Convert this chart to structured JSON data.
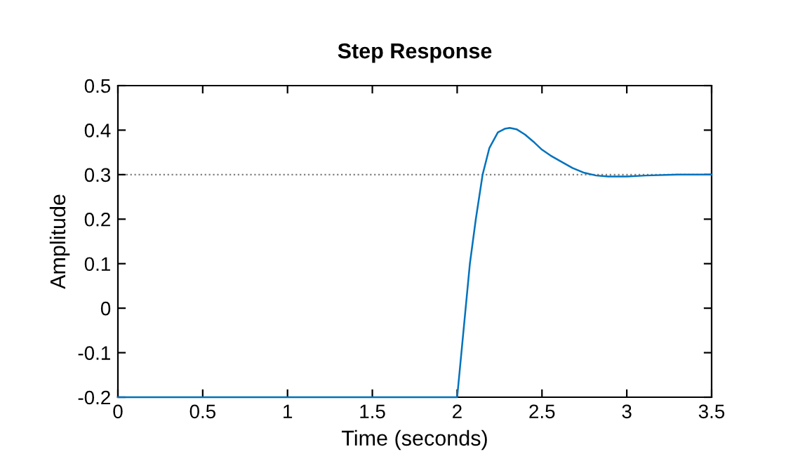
{
  "chart_data": {
    "type": "line",
    "title": "Step Response",
    "xlabel": "Time (seconds)",
    "ylabel": "Amplitude",
    "series": [
      {
        "color": "#0072bd",
        "x": [
          0,
          1,
          2,
          2.025,
          2.05,
          2.075,
          2.11,
          2.15,
          2.19,
          2.24,
          2.28,
          2.31,
          2.35,
          2.4,
          2.45,
          2.5,
          2.55,
          2.61,
          2.68,
          2.75,
          2.82,
          2.89,
          3.0,
          3.11,
          3.3,
          3.5
        ],
        "values": [
          -0.2,
          -0.2,
          -0.2,
          -0.1,
          0,
          0.1,
          0.2,
          0.3,
          0.36,
          0.395,
          0.403,
          0.405,
          0.402,
          0.39,
          0.374,
          0.356,
          0.343,
          0.33,
          0.315,
          0.304,
          0.298,
          0.296,
          0.296,
          0.298,
          0.3,
          0.3
        ]
      }
    ],
    "xlim": [
      0,
      3.5
    ],
    "ylim": [
      -0.2,
      0.5
    ],
    "xticks": [
      0,
      0.5,
      1,
      1.5,
      2,
      2.5,
      3,
      3.5
    ],
    "yticks": [
      -0.2,
      -0.1,
      0,
      0.1,
      0.2,
      0.3,
      0.4,
      0.5
    ],
    "ref_lines": [
      {
        "axis": "y",
        "value": 0.3,
        "color": "#808080",
        "line_style": "dotted"
      }
    ],
    "grid": false,
    "legend": false,
    "marker": "none",
    "line_style": "solid"
  }
}
